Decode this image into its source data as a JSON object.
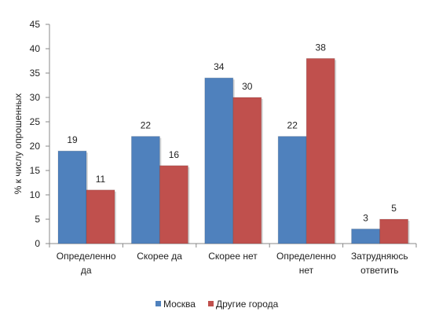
{
  "chart_data": {
    "type": "bar",
    "categories": [
      [
        "Определенно",
        "да"
      ],
      [
        "Скорее да"
      ],
      [
        "Скорее нет"
      ],
      [
        "Определенно",
        "нет"
      ],
      [
        "Затрудняюсь",
        "ответить"
      ]
    ],
    "series": [
      {
        "name": "Москва",
        "values": [
          19,
          22,
          34,
          22,
          3
        ],
        "color": "#4F81BD"
      },
      {
        "name": "Другие города",
        "values": [
          11,
          16,
          30,
          38,
          5
        ],
        "color": "#C0504D"
      }
    ],
    "data_labels": [
      [
        "19",
        "22",
        "34",
        "22",
        "3"
      ],
      [
        "11",
        "16",
        "30",
        "38",
        "5"
      ]
    ],
    "ylabel": "% к числу опрошенных",
    "xlabel": "",
    "ylim": [
      0,
      45
    ],
    "yticks": [
      0,
      5,
      10,
      15,
      20,
      25,
      30,
      35,
      40,
      45
    ],
    "grid": false,
    "legend": "bottom-center"
  }
}
